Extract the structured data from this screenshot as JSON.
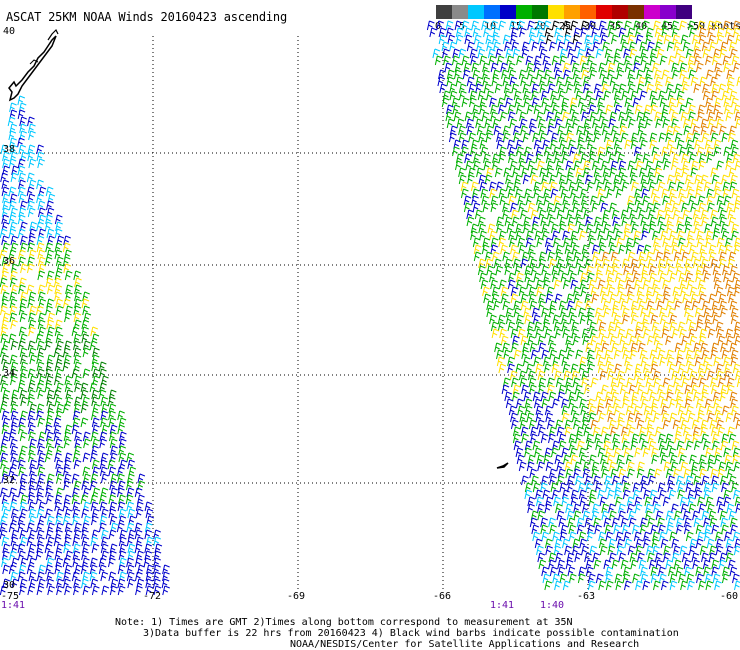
{
  "title": "ASCAT 25KM NOAA Winds 20160423 ascending",
  "legend": {
    "colors": [
      "#3f3f3f",
      "#8a8a8a",
      "#00c8ff",
      "#0070ff",
      "#0000c8",
      "#00b000",
      "#007800",
      "#ffe000",
      "#ffa000",
      "#ff6000",
      "#e00000",
      "#b00000",
      "#7a3000",
      "#cc00cc",
      "#8800cc",
      "#400080"
    ],
    "labels": [
      "0",
      "5",
      "10",
      "15",
      "20",
      "25",
      "30",
      "35",
      "40",
      "45",
      ">50 knots"
    ]
  },
  "lat_labels": [
    "40",
    "38",
    "36",
    "34",
    "32",
    "30"
  ],
  "lon_labels": [
    "-75",
    "-72",
    "-69",
    "-66",
    "-63",
    "-60"
  ],
  "times": [
    "1:41",
    "1:41",
    "1:40"
  ],
  "notes": [
    "Note: 1) Times are GMT 2)Times along bottom correspond to measurement at 35N",
    "3)Data buffer is 22 hrs from 20160423 4) Black wind barbs indicate possible contamination",
    "NOAA/NESDIS/Center for Satellite Applications and Research"
  ],
  "wind_colors": {
    "light_blue": "#00c8ff",
    "blue": "#0000cc",
    "green": "#00b000",
    "dark_green": "#008000",
    "yellow": "#ffe000",
    "orange": "#e08000",
    "black": "#000000"
  }
}
